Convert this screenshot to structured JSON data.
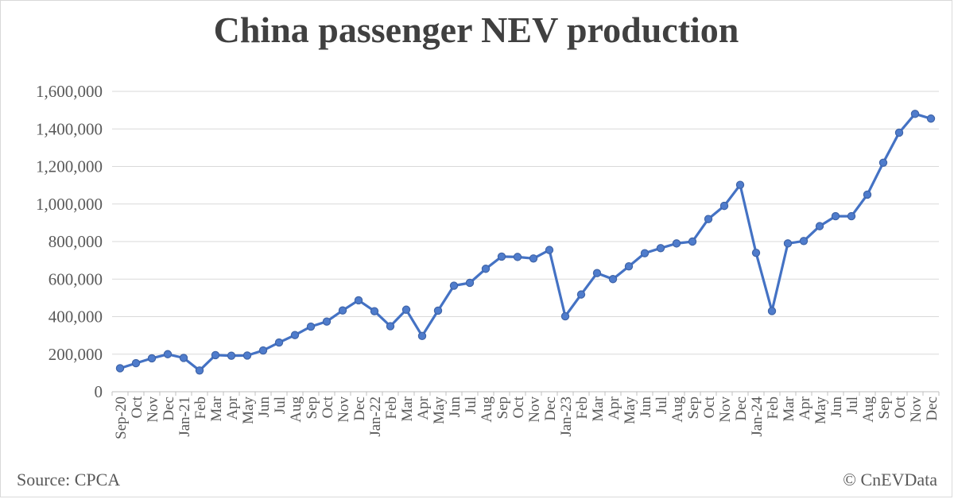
{
  "chart_data": {
    "type": "line",
    "title": "China passenger NEV production",
    "xlabel": "",
    "ylabel": "",
    "ylim": [
      0,
      1600000
    ],
    "yticks": [
      0,
      200000,
      400000,
      600000,
      800000,
      1000000,
      1200000,
      1400000,
      1600000
    ],
    "ytick_labels": [
      "0",
      "200,000",
      "400,000",
      "600,000",
      "800,000",
      "1,000,000",
      "1,200,000",
      "1,400,000",
      "1,600,000"
    ],
    "grid": true,
    "legend": false,
    "line_color": "#4472C4",
    "categories": [
      "Sep-20",
      "Oct",
      "Nov",
      "Dec",
      "Jan-21",
      "Feb",
      "Mar",
      "Apr",
      "May",
      "Jun",
      "Jul",
      "Aug",
      "Sep",
      "Oct",
      "Nov",
      "Dec",
      "Jan-22",
      "Feb",
      "Mar",
      "Apr",
      "May",
      "Jun",
      "Jul",
      "Aug",
      "Sep",
      "Oct",
      "Nov",
      "Dec",
      "Jan-23",
      "Feb",
      "Mar",
      "Apr",
      "May",
      "Jun",
      "Jul",
      "Aug",
      "Sep",
      "Oct",
      "Nov",
      "Dec",
      "Jan-24",
      "Feb",
      "Mar",
      "Apr",
      "May",
      "Jun",
      "Jul",
      "Aug",
      "Sep",
      "Oct",
      "Nov",
      "Dec"
    ],
    "series": [
      {
        "values": [
          125000,
          152000,
          178000,
          200000,
          180000,
          113000,
          195000,
          192000,
          193000,
          220000,
          262000,
          302000,
          347000,
          374000,
          433000,
          487000,
          429000,
          349000,
          437000,
          297000,
          432000,
          565000,
          580000,
          655000,
          720000,
          718000,
          710000,
          755000,
          402000,
          518000,
          632000,
          600000,
          668000,
          738000,
          765000,
          790000,
          800000,
          920000,
          990000,
          1102000,
          740000,
          430000,
          790000,
          803000,
          882000,
          935000,
          935000,
          1050000,
          1220000,
          1380000,
          1480000,
          1455000
        ]
      }
    ]
  },
  "source": "Source: CPCA",
  "credit": "© CnEVData"
}
